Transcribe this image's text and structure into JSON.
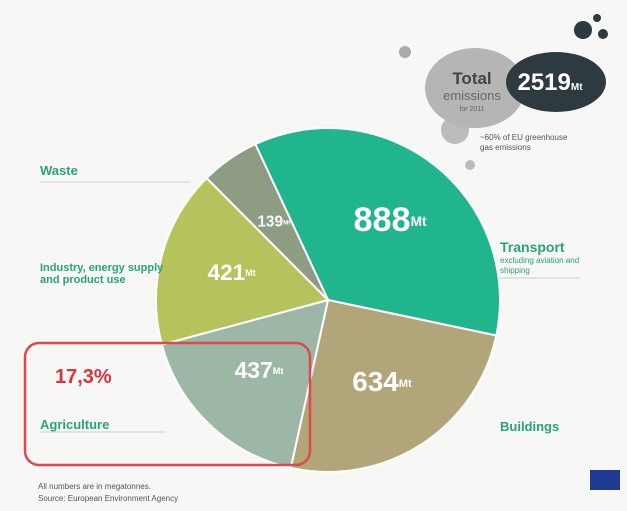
{
  "chart_data": {
    "type": "pie",
    "categories": [
      "Transport",
      "Buildings",
      "Agriculture",
      "Industry, energy supply and product use",
      "Waste"
    ],
    "values": [
      888,
      634,
      437,
      421,
      139
    ],
    "colors": [
      "#21b58e",
      "#b3a57a",
      "#9db7a6",
      "#b6c35c",
      "#8d9c82"
    ],
    "unit": "Mt",
    "total_label": "Total",
    "total_label2": "emissions",
    "total_note": "for 2011",
    "total": 2519,
    "share_note": "~60% of EU greenhouse gas emissions",
    "category_note": "excluding aviation and shipping",
    "annotation": "17,3%",
    "footnote": "All numbers are in megatonnes.",
    "source": "Source: European Environment Agency"
  }
}
